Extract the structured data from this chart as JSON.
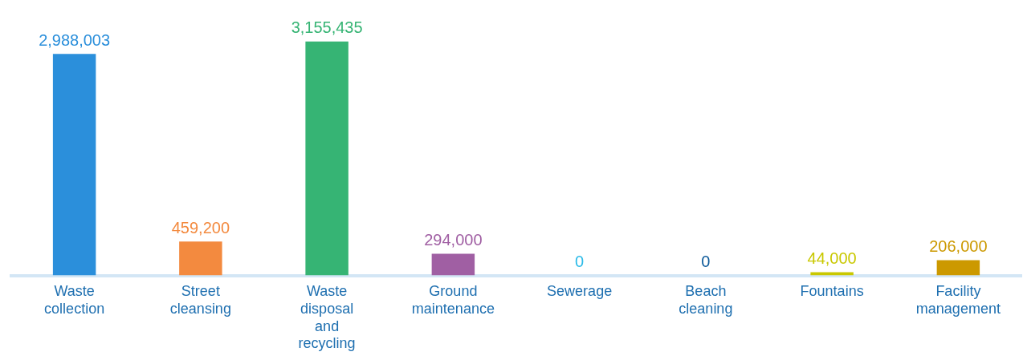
{
  "chart_data": {
    "type": "bar",
    "categories": [
      "Waste collection",
      "Street cleansing",
      "Waste disposal and recycling",
      "Ground maintenance",
      "Sewerage",
      "Beach cleaning",
      "Fountains",
      "Facility management"
    ],
    "values": [
      2988003,
      459200,
      3155435,
      294000,
      0,
      0,
      44000,
      206000
    ],
    "colors": [
      "#2b8fdb",
      "#f38a3f",
      "#36b474",
      "#a05fa3",
      "#2cbbe8",
      "#0d5a9a",
      "#c9c800",
      "#cc9900"
    ],
    "value_labels": [
      "2,988,003",
      "459,200",
      "3,155,435",
      "294,000",
      "0",
      "0",
      "44,000",
      "206,000"
    ],
    "grid": false,
    "legend": false
  }
}
